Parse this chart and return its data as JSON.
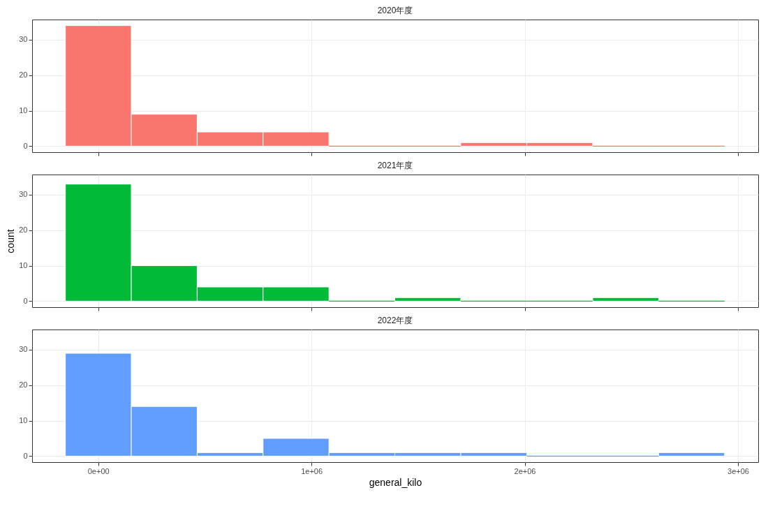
{
  "chart_data": [
    {
      "type": "histogram",
      "title": "2020年度",
      "bins": [
        -154000,
        155000,
        464000,
        773000,
        1082000,
        1391000,
        1700000,
        2010000,
        2319000,
        2628000,
        2937000
      ],
      "values": [
        34,
        9,
        4,
        4,
        0,
        0,
        1,
        1,
        0,
        0
      ],
      "color": "#f8766d",
      "xlim": [
        -310000,
        3095000
      ],
      "xticks": [
        {
          "value": 0,
          "label": null
        },
        {
          "value": 1000000,
          "label": null
        },
        {
          "value": 2000000,
          "label": null
        },
        {
          "value": 3000000,
          "label": null
        }
      ],
      "ylim": [
        -1.7,
        35.7
      ],
      "yticks": [
        0,
        10,
        20,
        30
      ],
      "grid": true,
      "tick_labels": "y"
    },
    {
      "type": "histogram",
      "title": "2021年度",
      "ylabel": "count",
      "bins": [
        -154000,
        155000,
        464000,
        773000,
        1082000,
        1391000,
        1700000,
        2010000,
        2319000,
        2628000,
        2937000
      ],
      "values": [
        33,
        10,
        4,
        4,
        0,
        1,
        0,
        0,
        1,
        0
      ],
      "color": "#00ba38",
      "xlim": [
        -310000,
        3095000
      ],
      "xticks": [
        {
          "value": 0,
          "label": null
        },
        {
          "value": 1000000,
          "label": null
        },
        {
          "value": 2000000,
          "label": null
        },
        {
          "value": 3000000,
          "label": null
        }
      ],
      "ylim": [
        -1.7,
        35.7
      ],
      "yticks": [
        0,
        10,
        20,
        30
      ],
      "grid": true,
      "tick_labels": "y"
    },
    {
      "type": "histogram",
      "title": "2022年度",
      "xlabel": "general_kilo",
      "bins": [
        -154000,
        155000,
        464000,
        773000,
        1082000,
        1391000,
        1700000,
        2010000,
        2319000,
        2628000,
        2937000
      ],
      "values": [
        29,
        14,
        1,
        5,
        1,
        1,
        1,
        0,
        0,
        1
      ],
      "color": "#619cff",
      "xlim": [
        -310000,
        3095000
      ],
      "xticks": [
        {
          "value": 0,
          "label": "0e+00"
        },
        {
          "value": 1000000,
          "label": "1e+06"
        },
        {
          "value": 2000000,
          "label": "2e+06"
        },
        {
          "value": 3000000,
          "label": "3e+06"
        }
      ],
      "ylim": [
        -1.7,
        35.7
      ],
      "yticks": [
        0,
        10,
        20,
        30
      ],
      "grid": true
    }
  ]
}
